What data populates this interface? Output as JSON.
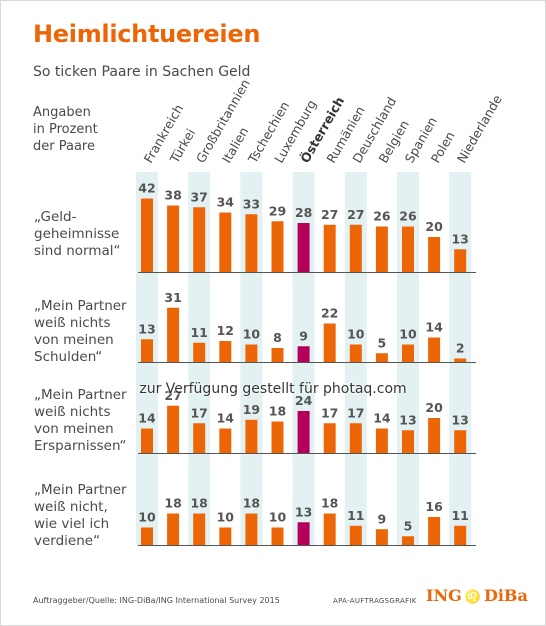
{
  "title": "Heimlichtuereien",
  "subtitle": "So ticken Paare in Sachen Geld",
  "intro": "Angaben\nin Prozent\nder Paare",
  "footer_source": "Auftraggeber/Quelle: ING-DiBa/ING International Survey 2015",
  "footer_credit": "APA-AUFTRAGSGRAFIK",
  "logo": {
    "part1": "ING",
    "part2": "DiBa"
  },
  "watermark": "zur Verfügung gestellt für photaq.com",
  "colors": {
    "bar": "#ec6608",
    "highlight": "#b4005a",
    "band": "#e3f1f2",
    "axis": "#555555"
  },
  "chart_data": {
    "type": "bar",
    "categories": [
      "Frankreich",
      "Türkei",
      "Großbritannien",
      "Italien",
      "Tschechien",
      "Luxemburg",
      "Österreich",
      "Rumänien",
      "Deuschland",
      "Belgien",
      "Spanien",
      "Polen",
      "Niederlande"
    ],
    "highlight": "Österreich",
    "series": [
      {
        "name": "„Geld-\ngeheimnisse\nsind normal“",
        "values": [
          42,
          38,
          37,
          34,
          33,
          29,
          28,
          27,
          27,
          26,
          26,
          20,
          13
        ]
      },
      {
        "name": "„Mein Partner\nweiß nichts\nvon meinen\nSchulden“",
        "values": [
          13,
          31,
          11,
          12,
          10,
          8,
          9,
          22,
          10,
          5,
          10,
          14,
          2
        ]
      },
      {
        "name": "„Mein Partner\nweiß nichts\nvon meinen\nErsparnissen“",
        "values": [
          14,
          27,
          17,
          14,
          19,
          18,
          24,
          17,
          17,
          14,
          13,
          20,
          13
        ]
      },
      {
        "name": "„Mein Partner\nweiß nicht,\nwie viel ich\nverdiene“",
        "values": [
          10,
          18,
          18,
          10,
          18,
          10,
          13,
          18,
          11,
          9,
          5,
          16,
          11
        ]
      }
    ]
  }
}
